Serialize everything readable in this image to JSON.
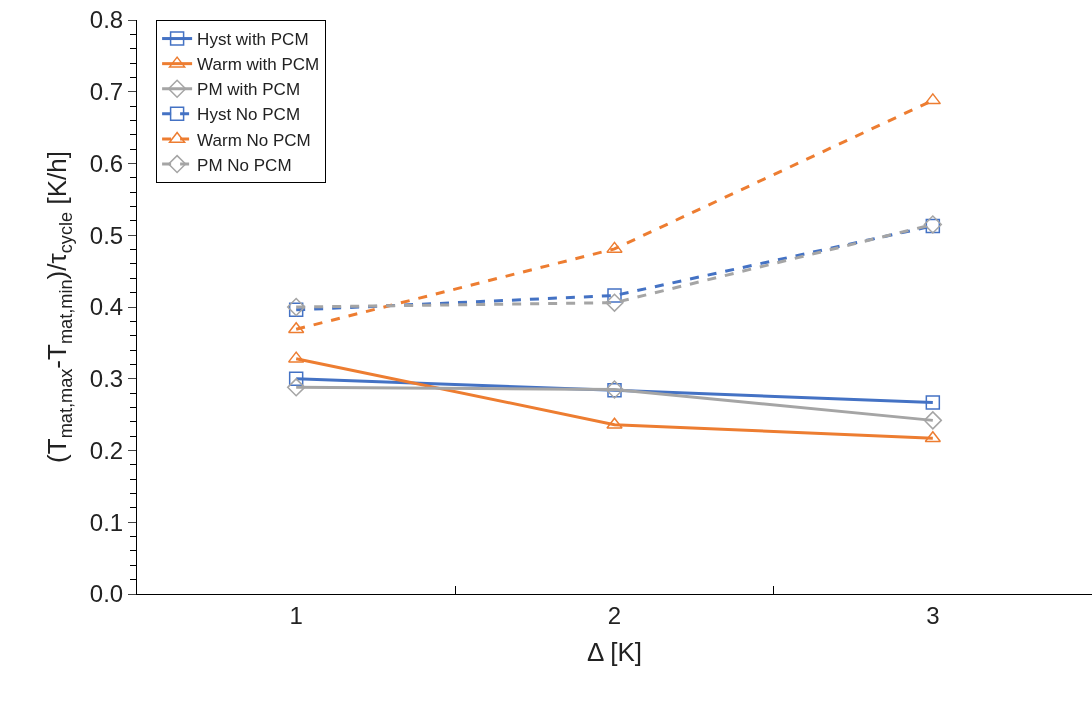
{
  "chart_data": {
    "type": "line",
    "xlabel": "Δ [K]",
    "ylabel": "(T$_{mat,max}$-T$_{mat,min}$)/τ$_{cycle}$ [K/h]",
    "categories": [
      "1",
      "2",
      "3"
    ],
    "ylim": [
      0,
      0.8
    ],
    "yticks": [
      {
        "value": 0,
        "label": "0.0"
      },
      0.1,
      0.2,
      0.3,
      0.4,
      0.5,
      0.6,
      0.7,
      0.8
    ],
    "legend": "top left",
    "series": [
      {
        "name": "Hyst with PCM",
        "color": "#4472c4",
        "marker": "square",
        "line_style": "solid",
        "values": [
          0.3,
          0.284,
          0.267
        ]
      },
      {
        "name": "Warm with PCM",
        "color": "#ed7d31",
        "marker": "triangle",
        "line_style": "solid",
        "values": [
          0.328,
          0.236,
          0.217
        ]
      },
      {
        "name": "PM with PCM",
        "color": "#a5a5a5",
        "marker": "diamond",
        "line_style": "solid",
        "values": [
          0.288,
          0.285,
          0.242
        ]
      },
      {
        "name": "Hyst No PCM",
        "color": "#4472c4",
        "marker": "square",
        "line_style": "dashed",
        "values": [
          0.396,
          0.416,
          0.513
        ]
      },
      {
        "name": "Warm No PCM",
        "color": "#ed7d31",
        "marker": "triangle",
        "line_style": "dashed",
        "values": [
          0.369,
          0.481,
          0.688
        ]
      },
      {
        "name": "PM No PCM",
        "color": "#a5a5a5",
        "marker": "diamond",
        "line_style": "dashed",
        "values": [
          0.4,
          0.406,
          0.515
        ]
      }
    ]
  }
}
